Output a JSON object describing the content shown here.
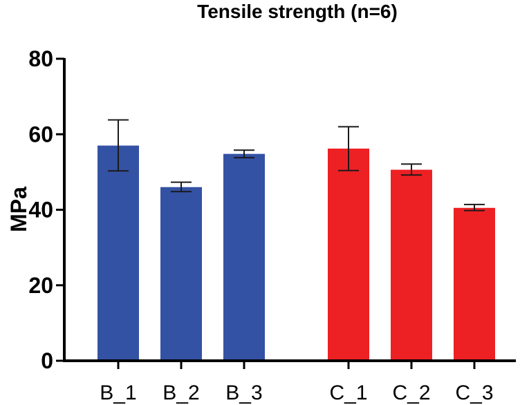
{
  "chart_data": {
    "type": "bar",
    "title": "Tensile strength (n=6)",
    "xlabel": "",
    "ylabel": "MPa",
    "ylim": [
      0,
      80
    ],
    "yticks": [
      0,
      20,
      40,
      60,
      80
    ],
    "grid": false,
    "categories": [
      "B_1",
      "B_2",
      "B_3",
      "C_1",
      "C_2",
      "C_3"
    ],
    "values": [
      57.0,
      46.0,
      54.8,
      56.2,
      50.6,
      40.5
    ],
    "error_low": [
      50.3,
      44.8,
      53.8,
      50.4,
      49.2,
      39.8
    ],
    "error_high": [
      63.8,
      47.3,
      55.8,
      62.0,
      52.1,
      41.4
    ],
    "groups": [
      {
        "name": "B",
        "categories": [
          "B_1",
          "B_2",
          "B_3"
        ],
        "color": "#3452A4"
      },
      {
        "name": "C",
        "categories": [
          "C_1",
          "C_2",
          "C_3"
        ],
        "color": "#ED2024"
      }
    ],
    "bar_colors": [
      "#3452A4",
      "#3452A4",
      "#3452A4",
      "#ED2024",
      "#ED2024",
      "#ED2024"
    ]
  }
}
